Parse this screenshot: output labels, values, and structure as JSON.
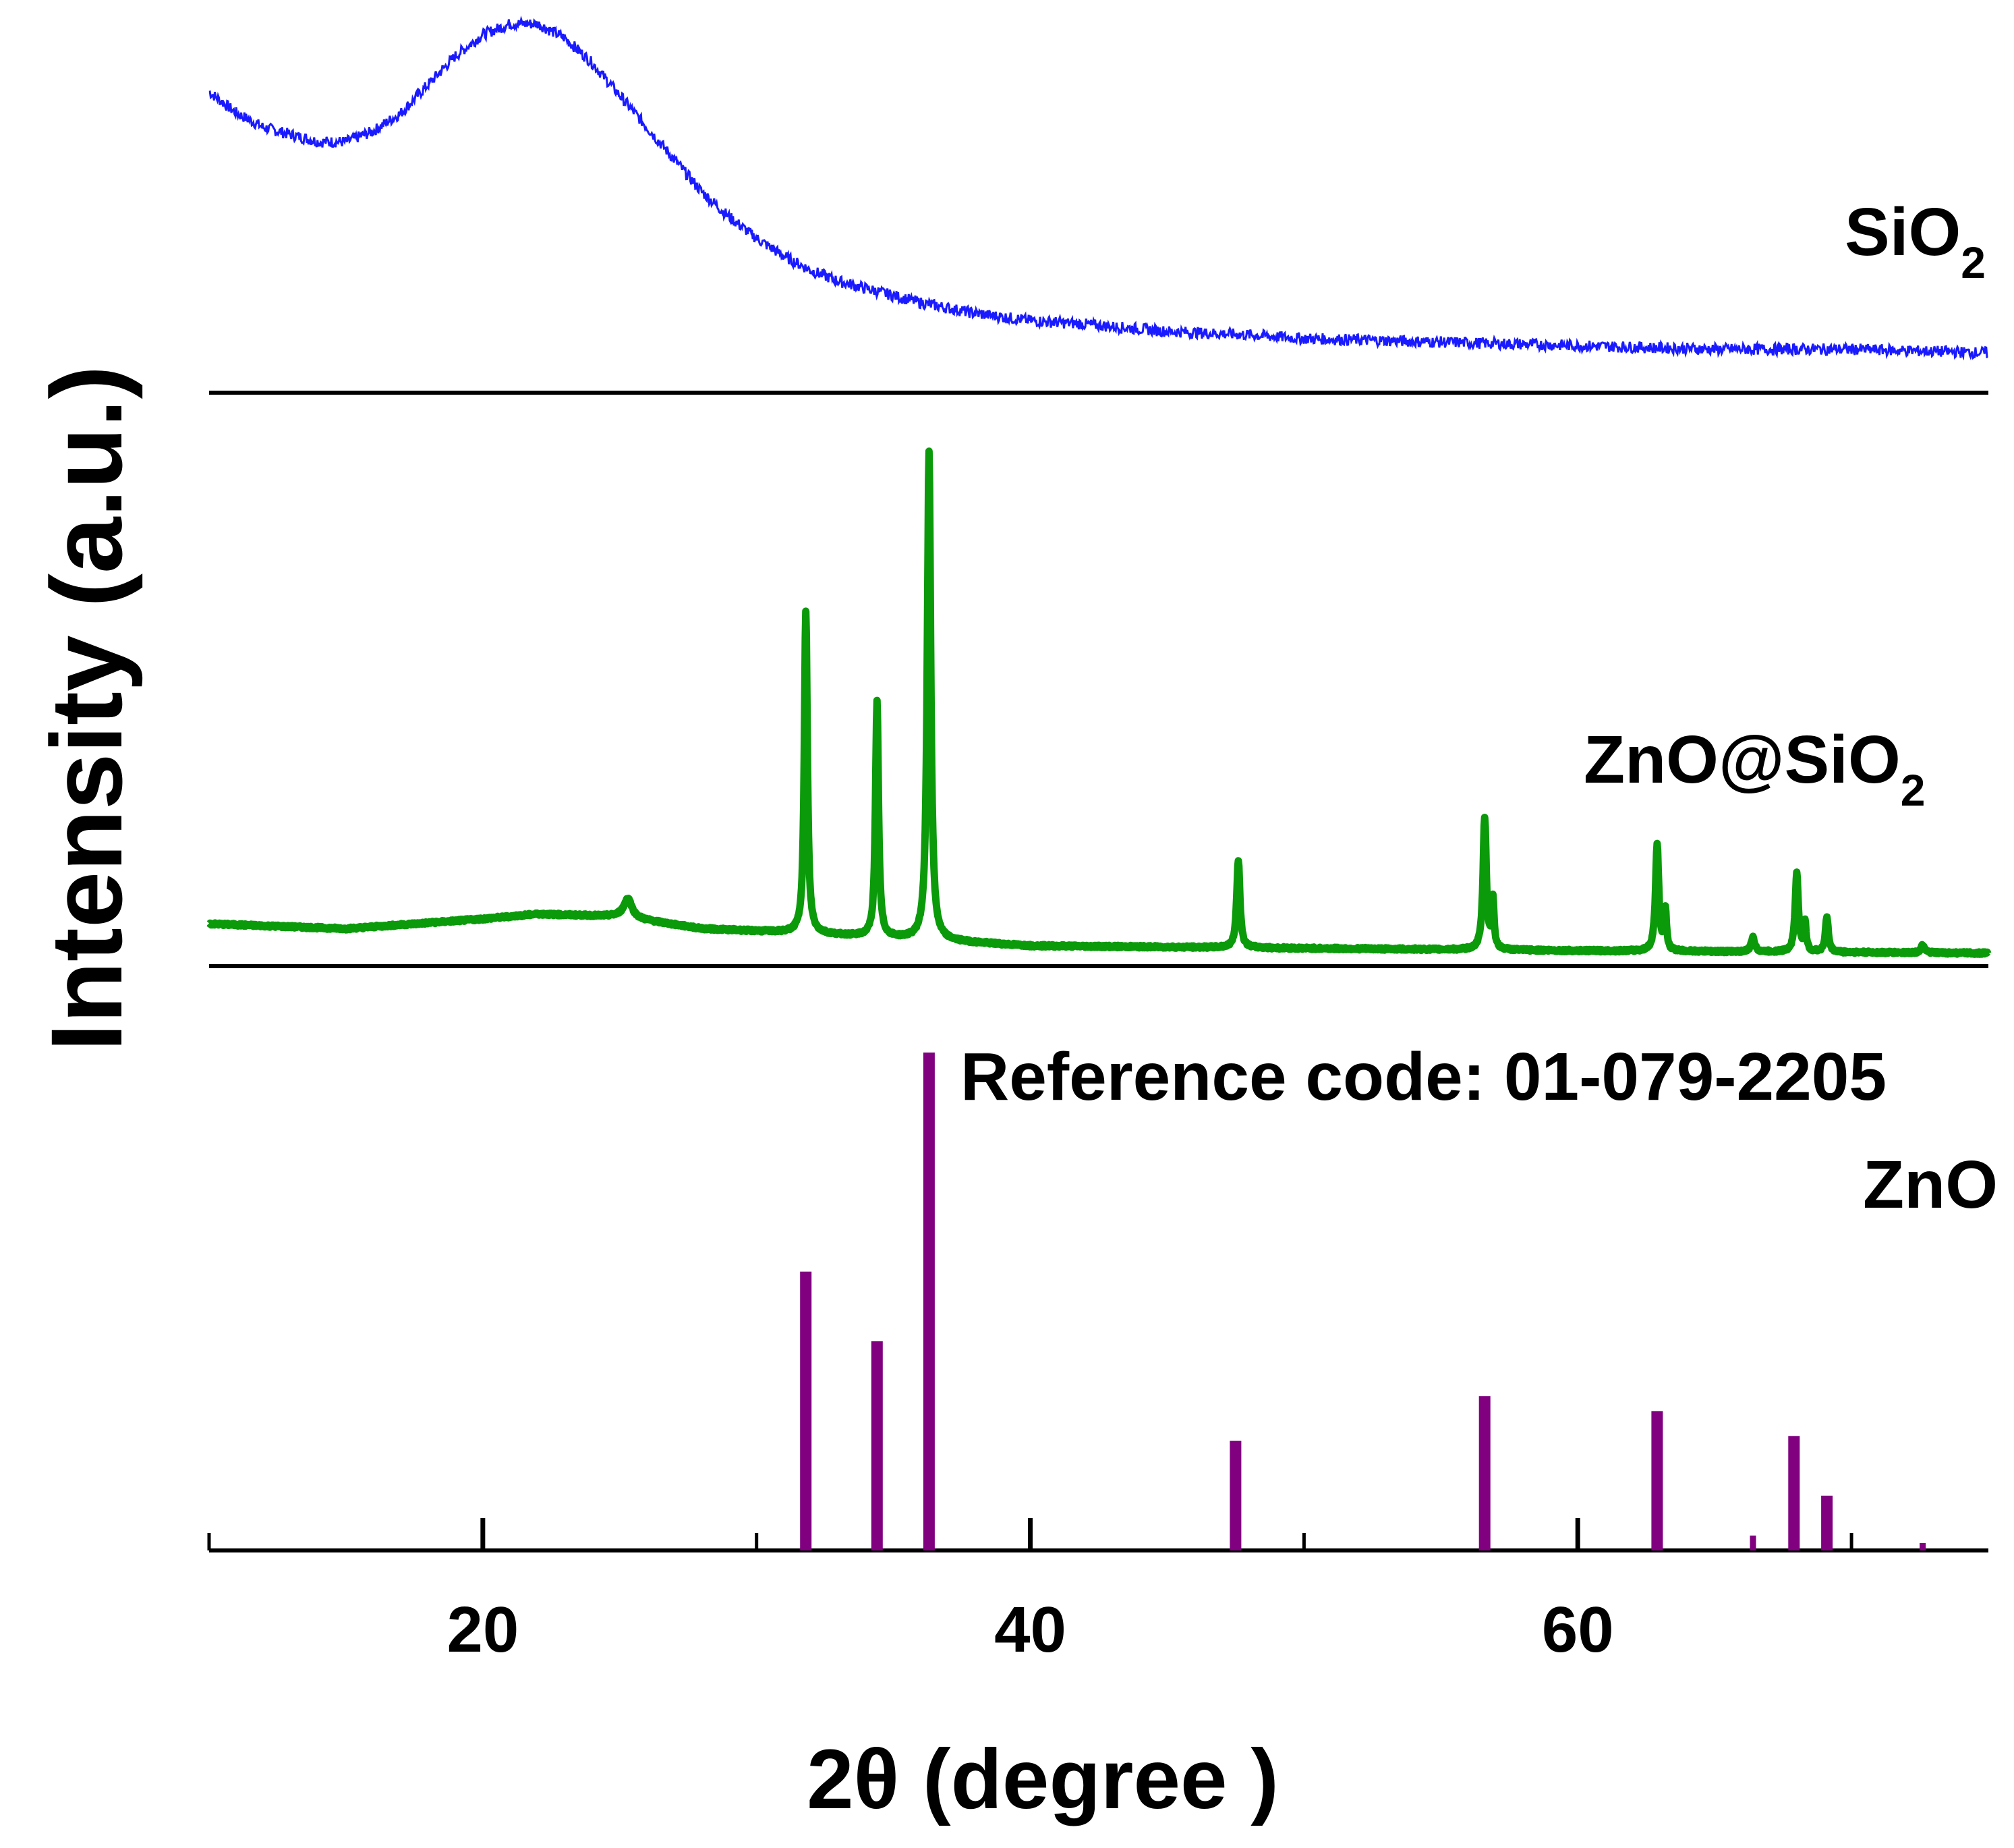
{
  "chart_data": {
    "type": "line",
    "title": "",
    "xlabel": "2θ (degree )",
    "ylabel": "Intensity (a.u.)",
    "xlim": [
      10,
      75
    ],
    "xticks": [
      {
        "value": 20,
        "label": "20"
      },
      {
        "value": 40,
        "label": "40"
      },
      {
        "value": 60,
        "label": "60"
      }
    ],
    "minor_xticks": [
      10,
      30,
      50,
      70
    ],
    "colors": {
      "sio2": "#1a1aff",
      "zno_sio2": "#0a9a0a",
      "reference": "#800080",
      "axis": "#000000"
    },
    "panels": [
      {
        "id": "sio2",
        "label": "SiO",
        "label_subscript": "2",
        "series_type": "line",
        "ylim": [
          0,
          100
        ],
        "x": [
          10,
          11,
          12,
          13,
          14,
          15,
          16,
          17,
          18,
          19,
          20,
          21,
          22,
          23,
          24,
          25,
          26,
          27,
          28,
          29,
          30,
          31,
          32,
          33,
          34,
          35,
          36,
          38,
          40,
          42,
          45,
          48,
          50,
          55,
          60,
          65,
          70,
          75
        ],
        "y": [
          80,
          74,
          70,
          68,
          66,
          66,
          69,
          74,
          82,
          90,
          96,
          99,
          99,
          95,
          88,
          79,
          70,
          61,
          52,
          45,
          39,
          34,
          30,
          27,
          25,
          23,
          21,
          18,
          16,
          15,
          13,
          12,
          11,
          10,
          9,
          8,
          8,
          7
        ]
      },
      {
        "id": "zno_sio2",
        "label": "ZnO@SiO",
        "label_subscript": "2",
        "series_type": "line",
        "ylim": [
          0,
          100
        ],
        "baseline": [
          {
            "x": 10,
            "y": 7
          },
          {
            "x": 15,
            "y": 6
          },
          {
            "x": 20,
            "y": 8
          },
          {
            "x": 22,
            "y": 9
          },
          {
            "x": 25,
            "y": 8.5
          },
          {
            "x": 28,
            "y": 6
          },
          {
            "x": 32,
            "y": 5
          },
          {
            "x": 40,
            "y": 2.5
          },
          {
            "x": 50,
            "y": 2
          },
          {
            "x": 60,
            "y": 1.5
          },
          {
            "x": 75,
            "y": 1
          }
        ],
        "peaks": [
          {
            "x": 25.3,
            "height": 4,
            "width": 0.35
          },
          {
            "x": 31.8,
            "height": 66,
            "width": 0.13
          },
          {
            "x": 34.4,
            "height": 48,
            "width": 0.13
          },
          {
            "x": 36.3,
            "height": 100,
            "width": 0.15
          },
          {
            "x": 47.6,
            "height": 18,
            "width": 0.14
          },
          {
            "x": 56.6,
            "height": 27,
            "width": 0.14
          },
          {
            "x": 56.9,
            "height": 10,
            "width": 0.1
          },
          {
            "x": 62.9,
            "height": 22,
            "width": 0.14
          },
          {
            "x": 63.2,
            "height": 8,
            "width": 0.1
          },
          {
            "x": 66.4,
            "height": 3,
            "width": 0.15
          },
          {
            "x": 68.0,
            "height": 16,
            "width": 0.14
          },
          {
            "x": 68.3,
            "height": 6,
            "width": 0.1
          },
          {
            "x": 69.1,
            "height": 7,
            "width": 0.13
          },
          {
            "x": 72.6,
            "height": 1.5,
            "width": 0.15
          }
        ]
      },
      {
        "id": "reference",
        "label": "ZnO",
        "reference_label": "Reference code: 01-079-2205",
        "series_type": "stick",
        "ylim": [
          0,
          100
        ],
        "sticks": [
          {
            "x": 31.8,
            "y": 56
          },
          {
            "x": 34.4,
            "y": 42
          },
          {
            "x": 36.3,
            "y": 100
          },
          {
            "x": 47.5,
            "y": 22
          },
          {
            "x": 56.6,
            "y": 31
          },
          {
            "x": 62.9,
            "y": 28
          },
          {
            "x": 66.4,
            "y": 3
          },
          {
            "x": 67.9,
            "y": 23
          },
          {
            "x": 69.1,
            "y": 11
          },
          {
            "x": 72.6,
            "y": 1.5
          }
        ]
      }
    ]
  }
}
